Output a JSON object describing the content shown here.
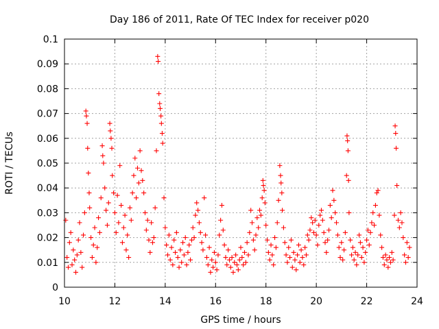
{
  "chart_data": {
    "type": "scatter",
    "title": "Day 186 of 2011, Rate Of TEC Index for receiver p020",
    "xlabel": "GPS time / hours",
    "ylabel": "ROTI / TECUs",
    "xlim": [
      10,
      24
    ],
    "ylim": [
      0,
      0.1
    ],
    "x_ticks": [
      10,
      12,
      14,
      16,
      18,
      20,
      22,
      24
    ],
    "x_tick_labels": [
      "10",
      "12",
      "14",
      "16",
      "18",
      "20",
      "22",
      "24"
    ],
    "y_ticks": [
      0,
      0.01,
      0.02,
      0.03,
      0.04,
      0.05,
      0.06,
      0.07,
      0.08,
      0.09,
      0.1
    ],
    "y_tick_labels": [
      "0",
      "0.01",
      "0.02",
      "0.03",
      "0.04",
      "0.05",
      "0.06",
      "0.07",
      "0.08",
      "0.09",
      "0.1"
    ],
    "grid": true,
    "marker": "plus",
    "color": "#ff0000",
    "series": [
      {
        "name": "p020",
        "points": [
          [
            10.05,
            0.027
          ],
          [
            10.1,
            0.012
          ],
          [
            10.15,
            0.008
          ],
          [
            10.2,
            0.018
          ],
          [
            10.25,
            0.022
          ],
          [
            10.3,
            0.009
          ],
          [
            10.35,
            0.015
          ],
          [
            10.4,
            0.011
          ],
          [
            10.45,
            0.006
          ],
          [
            10.5,
            0.013
          ],
          [
            10.55,
            0.019
          ],
          [
            10.6,
            0.026
          ],
          [
            10.65,
            0.014
          ],
          [
            10.7,
            0.008
          ],
          [
            10.75,
            0.021
          ],
          [
            10.8,
            0.03
          ],
          [
            10.85,
            0.071
          ],
          [
            10.87,
            0.069
          ],
          [
            10.9,
            0.066
          ],
          [
            10.92,
            0.056
          ],
          [
            10.95,
            0.046
          ],
          [
            10.98,
            0.038
          ],
          [
            11.0,
            0.032
          ],
          [
            11.05,
            0.02
          ],
          [
            11.1,
            0.012
          ],
          [
            11.15,
            0.017
          ],
          [
            11.2,
            0.024
          ],
          [
            11.25,
            0.01
          ],
          [
            11.3,
            0.016
          ],
          [
            11.35,
            0.028
          ],
          [
            11.4,
            0.022
          ],
          [
            11.45,
            0.036
          ],
          [
            11.5,
            0.057
          ],
          [
            11.52,
            0.053
          ],
          [
            11.55,
            0.05
          ],
          [
            11.6,
            0.04
          ],
          [
            11.65,
            0.031
          ],
          [
            11.7,
            0.025
          ],
          [
            11.75,
            0.034
          ],
          [
            11.8,
            0.066
          ],
          [
            11.82,
            0.063
          ],
          [
            11.85,
            0.06
          ],
          [
            11.88,
            0.056
          ],
          [
            11.9,
            0.045
          ],
          [
            11.95,
            0.038
          ],
          [
            12.0,
            0.03
          ],
          [
            12.05,
            0.022
          ],
          [
            12.1,
            0.037
          ],
          [
            12.15,
            0.026
          ],
          [
            12.2,
            0.049
          ],
          [
            12.25,
            0.033
          ],
          [
            12.3,
            0.018
          ],
          [
            12.35,
            0.024
          ],
          [
            12.4,
            0.029
          ],
          [
            12.45,
            0.015
          ],
          [
            12.5,
            0.021
          ],
          [
            12.55,
            0.012
          ],
          [
            12.6,
            0.032
          ],
          [
            12.65,
            0.027
          ],
          [
            12.7,
            0.038
          ],
          [
            12.75,
            0.045
          ],
          [
            12.8,
            0.052
          ],
          [
            12.85,
            0.036
          ],
          [
            12.9,
            0.048
          ],
          [
            12.95,
            0.042
          ],
          [
            13.0,
            0.055
          ],
          [
            13.05,
            0.047
          ],
          [
            13.1,
            0.043
          ],
          [
            13.15,
            0.038
          ],
          [
            13.2,
            0.03
          ],
          [
            13.25,
            0.023
          ],
          [
            13.3,
            0.027
          ],
          [
            13.35,
            0.019
          ],
          [
            13.4,
            0.014
          ],
          [
            13.45,
            0.026
          ],
          [
            13.5,
            0.018
          ],
          [
            13.55,
            0.02
          ],
          [
            13.6,
            0.032
          ],
          [
            13.65,
            0.055
          ],
          [
            13.7,
            0.093
          ],
          [
            13.72,
            0.091
          ],
          [
            13.75,
            0.078
          ],
          [
            13.78,
            0.074
          ],
          [
            13.8,
            0.072
          ],
          [
            13.83,
            0.069
          ],
          [
            13.85,
            0.066
          ],
          [
            13.88,
            0.062
          ],
          [
            13.9,
            0.058
          ],
          [
            13.95,
            0.036
          ],
          [
            14.0,
            0.024
          ],
          [
            14.05,
            0.017
          ],
          [
            14.1,
            0.013
          ],
          [
            14.15,
            0.021
          ],
          [
            14.2,
            0.011
          ],
          [
            14.25,
            0.016
          ],
          [
            14.3,
            0.009
          ],
          [
            14.35,
            0.019
          ],
          [
            14.4,
            0.014
          ],
          [
            14.45,
            0.022
          ],
          [
            14.5,
            0.012
          ],
          [
            14.55,
            0.008
          ],
          [
            14.6,
            0.015
          ],
          [
            14.65,
            0.01
          ],
          [
            14.7,
            0.018
          ],
          [
            14.75,
            0.013
          ],
          [
            14.8,
            0.02
          ],
          [
            14.85,
            0.009
          ],
          [
            14.9,
            0.014
          ],
          [
            14.95,
            0.017
          ],
          [
            15.0,
            0.011
          ],
          [
            15.05,
            0.019
          ],
          [
            15.1,
            0.024
          ],
          [
            15.15,
            0.02
          ],
          [
            15.2,
            0.029
          ],
          [
            15.25,
            0.034
          ],
          [
            15.3,
            0.031
          ],
          [
            15.35,
            0.026
          ],
          [
            15.4,
            0.022
          ],
          [
            15.45,
            0.018
          ],
          [
            15.5,
            0.015
          ],
          [
            15.55,
            0.036
          ],
          [
            15.6,
            0.021
          ],
          [
            15.65,
            0.012
          ],
          [
            15.7,
            0.009
          ],
          [
            15.75,
            0.016
          ],
          [
            15.8,
            0.006
          ],
          [
            15.85,
            0.011
          ],
          [
            15.9,
            0.008
          ],
          [
            15.95,
            0.014
          ],
          [
            16.0,
            0.01
          ],
          [
            16.05,
            0.007
          ],
          [
            16.1,
            0.013
          ],
          [
            16.15,
            0.021
          ],
          [
            16.2,
            0.027
          ],
          [
            16.25,
            0.033
          ],
          [
            16.3,
            0.023
          ],
          [
            16.35,
            0.017
          ],
          [
            16.4,
            0.012
          ],
          [
            16.45,
            0.009
          ],
          [
            16.5,
            0.015
          ],
          [
            16.55,
            0.011
          ],
          [
            16.6,
            0.008
          ],
          [
            16.65,
            0.012
          ],
          [
            16.7,
            0.006
          ],
          [
            16.75,
            0.01
          ],
          [
            16.8,
            0.013
          ],
          [
            16.85,
            0.009
          ],
          [
            16.9,
            0.007
          ],
          [
            16.95,
            0.011
          ],
          [
            17.0,
            0.016
          ],
          [
            17.05,
            0.012
          ],
          [
            17.1,
            0.009
          ],
          [
            17.15,
            0.014
          ],
          [
            17.2,
            0.01
          ],
          [
            17.25,
            0.018
          ],
          [
            17.3,
            0.013
          ],
          [
            17.35,
            0.022
          ],
          [
            17.4,
            0.031
          ],
          [
            17.45,
            0.026
          ],
          [
            17.5,
            0.019
          ],
          [
            17.55,
            0.015
          ],
          [
            17.6,
            0.021
          ],
          [
            17.65,
            0.028
          ],
          [
            17.7,
            0.024
          ],
          [
            17.75,
            0.031
          ],
          [
            17.8,
            0.029
          ],
          [
            17.85,
            0.036
          ],
          [
            17.88,
            0.043
          ],
          [
            17.9,
            0.041
          ],
          [
            17.93,
            0.039
          ],
          [
            17.96,
            0.034
          ],
          [
            18.0,
            0.025
          ],
          [
            18.05,
            0.019
          ],
          [
            18.1,
            0.014
          ],
          [
            18.15,
            0.011
          ],
          [
            18.2,
            0.017
          ],
          [
            18.25,
            0.013
          ],
          [
            18.3,
            0.009
          ],
          [
            18.35,
            0.02
          ],
          [
            18.4,
            0.016
          ],
          [
            18.45,
            0.026
          ],
          [
            18.5,
            0.035
          ],
          [
            18.55,
            0.049
          ],
          [
            18.58,
            0.045
          ],
          [
            18.6,
            0.042
          ],
          [
            18.63,
            0.038
          ],
          [
            18.65,
            0.031
          ],
          [
            18.7,
            0.024
          ],
          [
            18.75,
            0.018
          ],
          [
            18.8,
            0.013
          ],
          [
            18.85,
            0.01
          ],
          [
            18.9,
            0.016
          ],
          [
            18.95,
            0.012
          ],
          [
            19.0,
            0.019
          ],
          [
            19.05,
            0.008
          ],
          [
            19.1,
            0.014
          ],
          [
            19.15,
            0.011
          ],
          [
            19.2,
            0.007
          ],
          [
            19.25,
            0.013
          ],
          [
            19.3,
            0.017
          ],
          [
            19.35,
            0.01
          ],
          [
            19.4,
            0.015
          ],
          [
            19.45,
            0.012
          ],
          [
            19.5,
            0.009
          ],
          [
            19.55,
            0.016
          ],
          [
            19.6,
            0.013
          ],
          [
            19.65,
            0.021
          ],
          [
            19.7,
            0.019
          ],
          [
            19.75,
            0.023
          ],
          [
            19.8,
            0.028
          ],
          [
            19.85,
            0.026
          ],
          [
            19.9,
            0.022
          ],
          [
            19.95,
            0.027
          ],
          [
            20.0,
            0.021
          ],
          [
            20.05,
            0.017
          ],
          [
            20.1,
            0.025
          ],
          [
            20.15,
            0.029
          ],
          [
            20.2,
            0.031
          ],
          [
            20.25,
            0.027
          ],
          [
            20.3,
            0.022
          ],
          [
            20.35,
            0.018
          ],
          [
            20.4,
            0.014
          ],
          [
            20.45,
            0.019
          ],
          [
            20.5,
            0.023
          ],
          [
            20.55,
            0.033
          ],
          [
            20.6,
            0.028
          ],
          [
            20.65,
            0.039
          ],
          [
            20.7,
            0.035
          ],
          [
            20.75,
            0.03
          ],
          [
            20.8,
            0.026
          ],
          [
            20.85,
            0.021
          ],
          [
            20.9,
            0.016
          ],
          [
            20.95,
            0.012
          ],
          [
            21.0,
            0.018
          ],
          [
            21.05,
            0.011
          ],
          [
            21.1,
            0.015
          ],
          [
            21.15,
            0.022
          ],
          [
            21.2,
            0.045
          ],
          [
            21.22,
            0.061
          ],
          [
            21.24,
            0.059
          ],
          [
            21.26,
            0.055
          ],
          [
            21.28,
            0.043
          ],
          [
            21.3,
            0.03
          ],
          [
            21.35,
            0.019
          ],
          [
            21.4,
            0.013
          ],
          [
            21.45,
            0.016
          ],
          [
            21.5,
            0.011
          ],
          [
            21.55,
            0.014
          ],
          [
            21.6,
            0.009
          ],
          [
            21.65,
            0.013
          ],
          [
            21.7,
            0.021
          ],
          [
            21.75,
            0.018
          ],
          [
            21.8,
            0.012
          ],
          [
            21.85,
            0.016
          ],
          [
            21.9,
            0.01
          ],
          [
            21.95,
            0.014
          ],
          [
            22.0,
            0.019
          ],
          [
            22.05,
            0.023
          ],
          [
            22.1,
            0.017
          ],
          [
            22.15,
            0.022
          ],
          [
            22.2,
            0.026
          ],
          [
            22.25,
            0.03
          ],
          [
            22.3,
            0.025
          ],
          [
            22.35,
            0.033
          ],
          [
            22.4,
            0.038
          ],
          [
            22.45,
            0.039
          ],
          [
            22.5,
            0.029
          ],
          [
            22.55,
            0.021
          ],
          [
            22.6,
            0.016
          ],
          [
            22.65,
            0.012
          ],
          [
            22.7,
            0.009
          ],
          [
            22.75,
            0.013
          ],
          [
            22.8,
            0.011
          ],
          [
            22.85,
            0.008
          ],
          [
            22.9,
            0.012
          ],
          [
            22.95,
            0.01
          ],
          [
            23.0,
            0.014
          ],
          [
            23.05,
            0.011
          ],
          [
            23.1,
            0.029
          ],
          [
            23.13,
            0.065
          ],
          [
            23.15,
            0.062
          ],
          [
            23.17,
            0.056
          ],
          [
            23.2,
            0.041
          ],
          [
            23.25,
            0.027
          ],
          [
            23.3,
            0.024
          ],
          [
            23.35,
            0.03
          ],
          [
            23.4,
            0.026
          ],
          [
            23.45,
            0.02
          ],
          [
            23.5,
            0.013
          ],
          [
            23.55,
            0.01
          ],
          [
            23.6,
            0.018
          ],
          [
            23.65,
            0.012
          ],
          [
            23.7,
            0.016
          ]
        ]
      }
    ]
  }
}
